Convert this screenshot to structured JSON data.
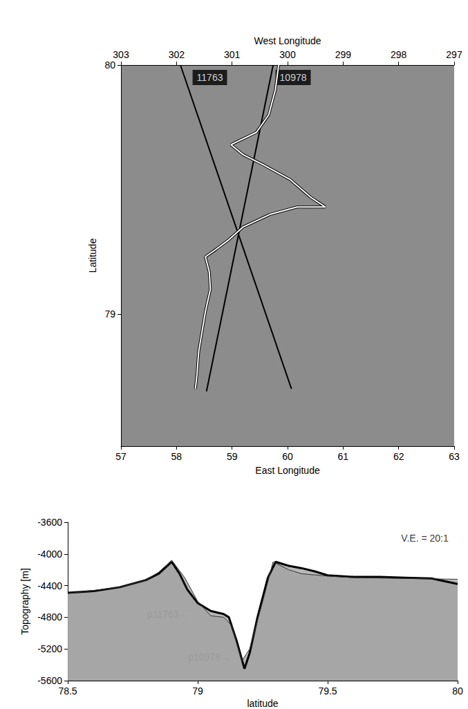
{
  "chart_data": [
    {
      "type": "line",
      "xlabel": "East Longitude",
      "x2label": "West Longitude",
      "ylabel": "Latitude",
      "xlim": [
        57,
        63
      ],
      "xticks": [
        57,
        58,
        59,
        60,
        61,
        62,
        63
      ],
      "x2lim": [
        297,
        303
      ],
      "x2ticks": [
        297,
        298,
        299,
        300,
        301,
        302,
        303
      ],
      "ylim": [
        78.47,
        80
      ],
      "yticks": [
        79,
        80
      ],
      "grid": false,
      "series": [
        {
          "color": "#000000",
          "line_style": "solid",
          "x": [
            58.07,
            60.07
          ],
          "values": [
            80.0,
            78.7
          ]
        },
        {
          "color": "#000000",
          "line_style": "solid",
          "x": [
            59.74,
            58.54
          ],
          "values": [
            80.0,
            78.69
          ]
        },
        {
          "color": "#ffffff",
          "line_style": "outlined",
          "x": [
            59.84,
            59.78,
            59.66,
            59.44,
            59.07,
            58.98,
            59.2,
            59.56,
            60.05,
            60.41,
            60.68,
            60.17,
            59.68,
            59.2,
            58.95,
            58.71,
            58.52,
            58.59,
            58.61,
            58.52,
            58.46,
            58.4,
            58.37,
            58.34
          ],
          "values": [
            80.0,
            79.9,
            79.8,
            79.73,
            79.69,
            79.68,
            79.64,
            79.6,
            79.54,
            79.47,
            79.43,
            79.43,
            79.4,
            79.35,
            79.3,
            79.26,
            79.23,
            79.17,
            79.1,
            79.01,
            78.93,
            78.85,
            78.76,
            78.7
          ]
        }
      ],
      "annotations": [
        {
          "text": "11763",
          "x": 58.6,
          "y": 79.95
        },
        {
          "text": "10978",
          "x": 60.1,
          "y": 79.95
        }
      ]
    },
    {
      "type": "line",
      "xlabel": "latitude",
      "ylabel": "Topography [m]",
      "xlim": [
        78.5,
        80
      ],
      "xticks": [
        78.5,
        79,
        79.5,
        80
      ],
      "ylim": [
        -5600,
        -3600
      ],
      "yticks": [
        -5600,
        -5200,
        -4800,
        -4400,
        -4000,
        -3600
      ],
      "grid": false,
      "series": [
        {
          "color": "#000000",
          "line_style": "bold",
          "x": [
            78.5,
            78.6,
            78.7,
            78.8,
            78.85,
            78.88,
            78.9,
            78.93,
            78.96,
            79.0,
            79.05,
            79.1,
            79.12,
            79.15,
            79.18,
            79.2,
            79.23,
            79.27,
            79.3,
            79.35,
            79.4,
            79.45,
            79.5,
            79.6,
            79.7,
            79.8,
            79.9,
            80.0
          ],
          "values": [
            -4490,
            -4470,
            -4420,
            -4330,
            -4250,
            -4160,
            -4100,
            -4250,
            -4450,
            -4620,
            -4720,
            -4760,
            -4800,
            -5100,
            -5450,
            -5250,
            -4800,
            -4300,
            -4100,
            -4150,
            -4180,
            -4220,
            -4270,
            -4290,
            -4290,
            -4300,
            -4310,
            -4380
          ]
        },
        {
          "color": "#333333",
          "line_style": "solid",
          "x": [
            78.5,
            78.7,
            78.8,
            78.85,
            78.9,
            78.95,
            79.0,
            79.05,
            79.1,
            79.13,
            79.17,
            79.2,
            79.25,
            79.29,
            79.35,
            79.4,
            79.5,
            79.6,
            79.8,
            80.0
          ],
          "values": [
            -4500,
            -4420,
            -4330,
            -4230,
            -4080,
            -4300,
            -4600,
            -4780,
            -4800,
            -4900,
            -5350,
            -5200,
            -4600,
            -4100,
            -4200,
            -4250,
            -4280,
            -4300,
            -4310,
            -4320
          ]
        }
      ],
      "annotations": [
        {
          "text": "p11763→",
          "x": 78.97,
          "y": -4760
        },
        {
          "text": "p10978→",
          "x": 79.13,
          "y": -5300
        },
        {
          "text": "V.E. = 20:1",
          "x": 79.97,
          "y": -3800
        }
      ]
    }
  ]
}
